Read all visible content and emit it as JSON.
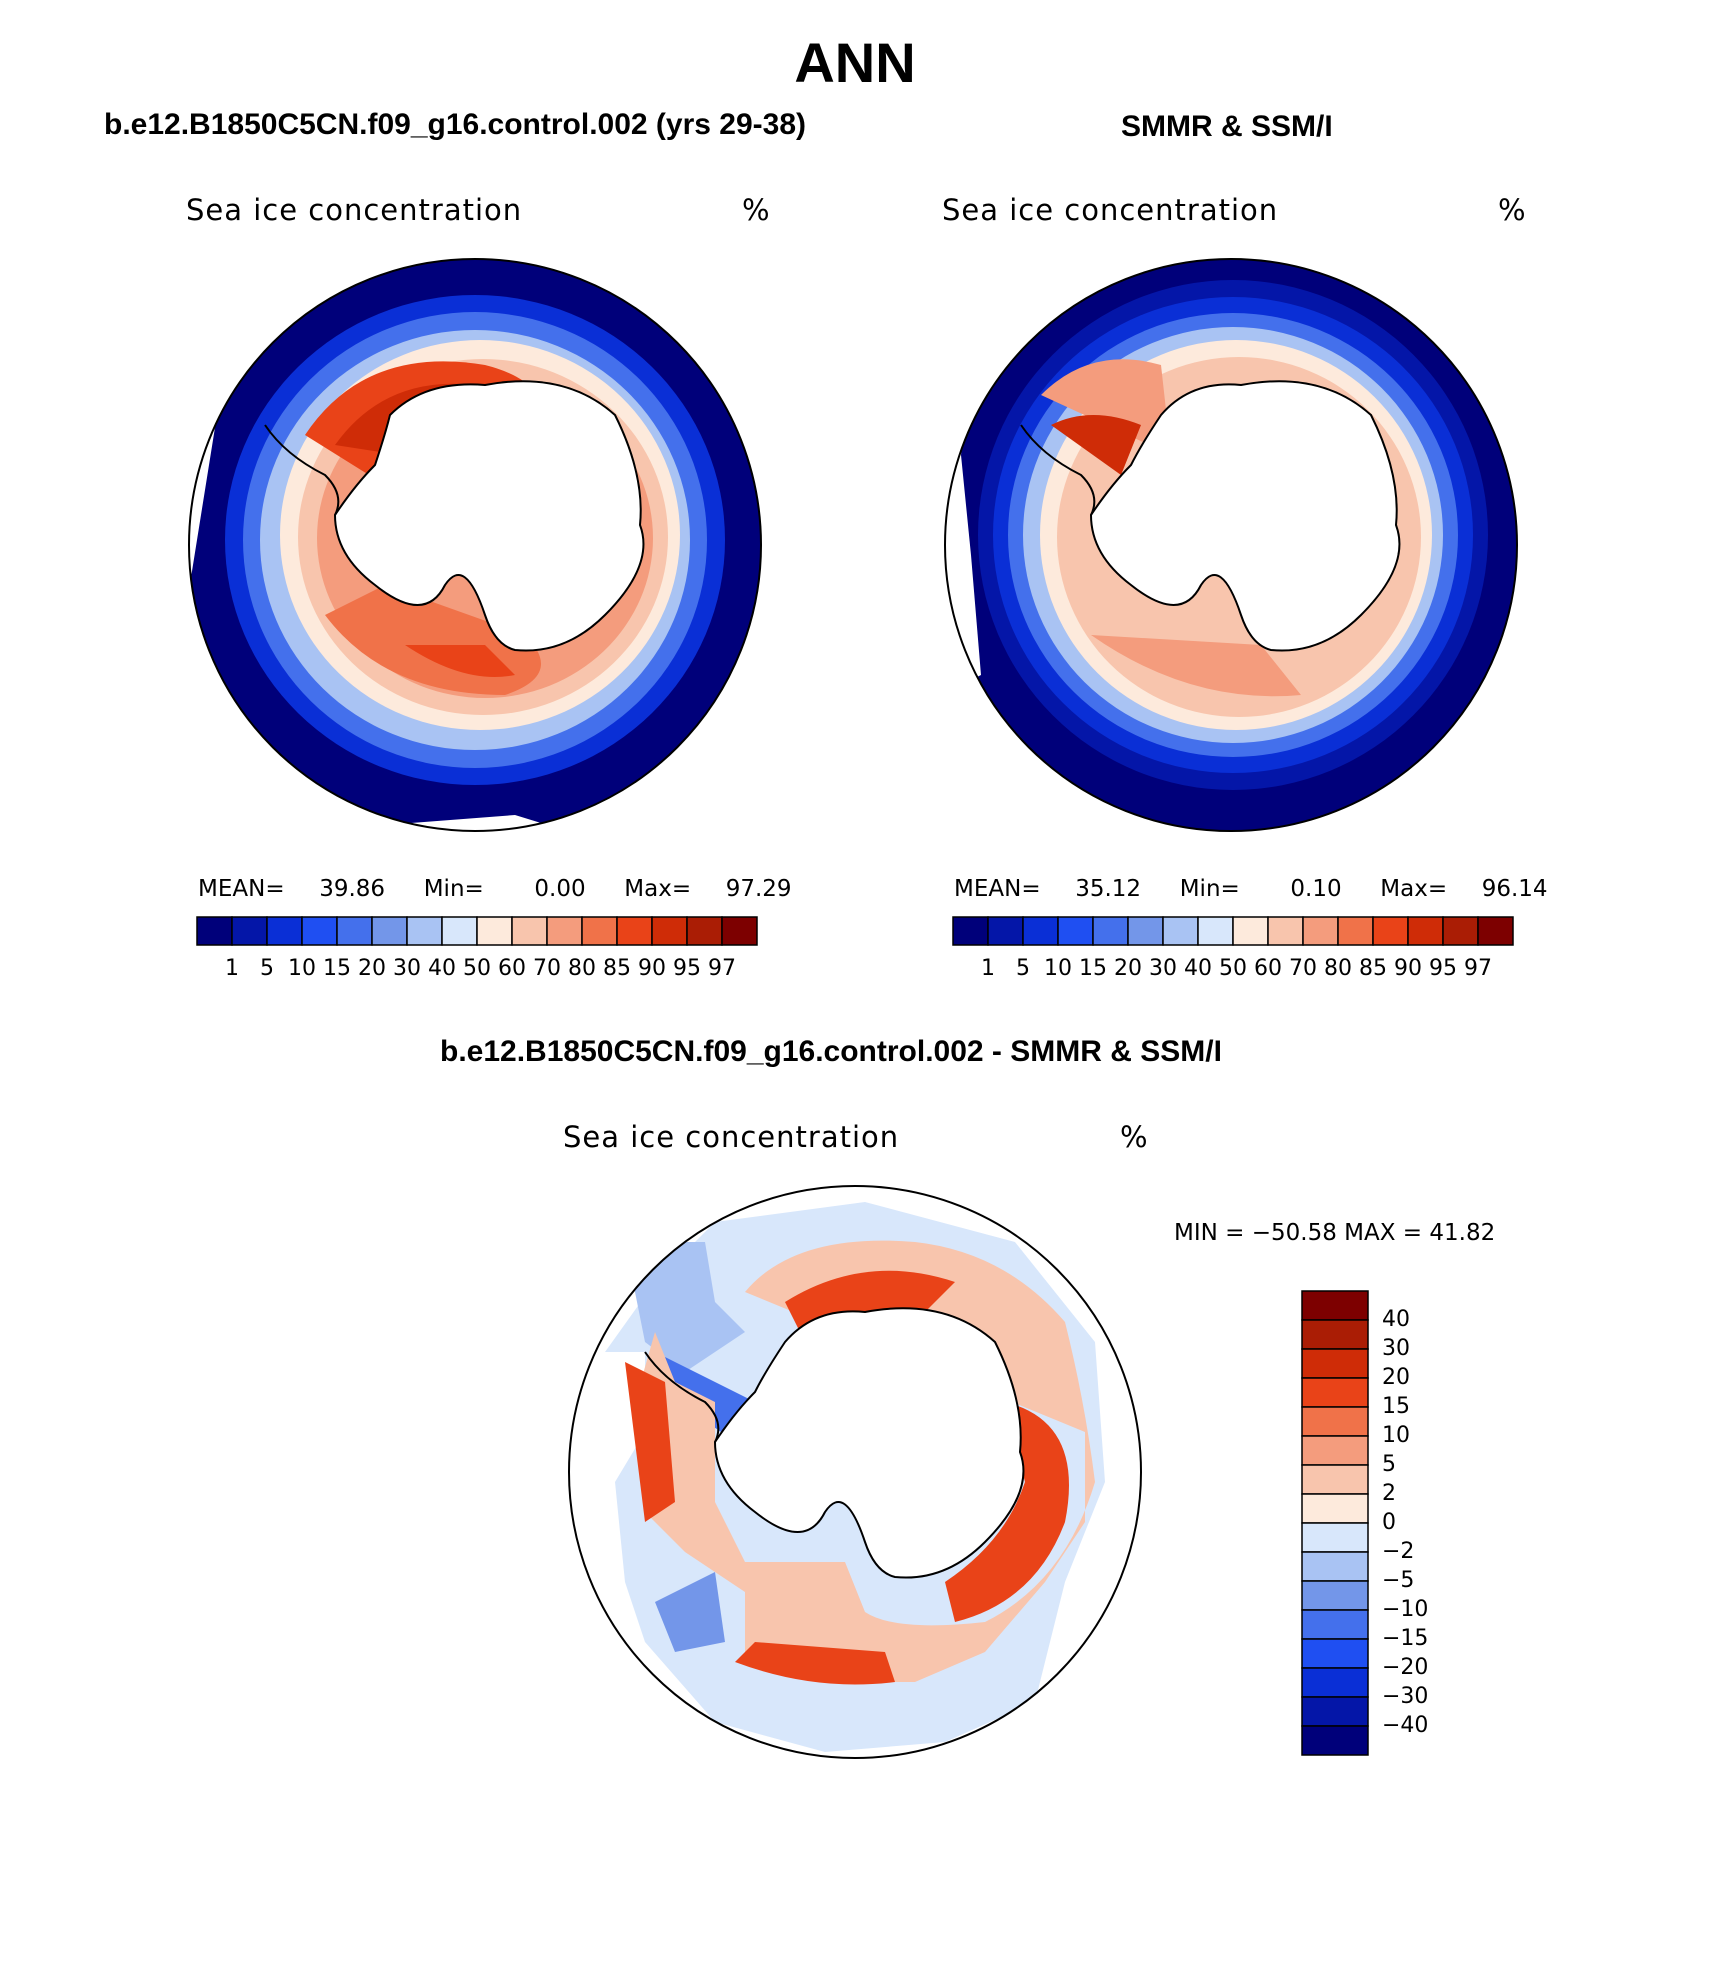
{
  "figure": {
    "title": "ANN"
  },
  "panels": [
    {
      "title": "b.e12.B1850C5CN.f09_g16.control.002 (yrs 29-38)",
      "label": "Sea ice concentration",
      "units": "%",
      "mean_label": "MEAN=",
      "mean": "39.86",
      "min_label": "Min=",
      "min": "0.00",
      "max_label": "Max=",
      "max": "97.29"
    },
    {
      "title": "SMMR & SSM/I",
      "label": "Sea ice concentration",
      "units": "%",
      "mean_label": "MEAN=",
      "mean": "35.12",
      "min_label": "Min=",
      "min": "0.10",
      "max_label": "Max=",
      "max": "96.14"
    }
  ],
  "diff_panel": {
    "title": "b.e12.B1850C5CN.f09_g16.control.002 - SMMR & SSM/I",
    "label": "Sea ice concentration",
    "units": "%",
    "minmax_text": "MIN = −50.58 MAX =   41.82"
  },
  "conc_colorbar": {
    "levels": [
      "1",
      "5",
      "10",
      "15",
      "20",
      "30",
      "40",
      "50",
      "60",
      "70",
      "80",
      "85",
      "90",
      "95",
      "97"
    ],
    "colors": [
      "#00007a",
      "#0416a8",
      "#0a2fd6",
      "#1f4ff2",
      "#4470ec",
      "#7396e9",
      "#a9c3f3",
      "#d8e7fb",
      "#fdeadc",
      "#f8c5ad",
      "#f49c7d",
      "#f07249",
      "#e94318",
      "#cf2c07",
      "#aa1d05",
      "#7d0000"
    ]
  },
  "diff_colorbar": {
    "levels": [
      "40",
      "30",
      "20",
      "15",
      "10",
      "5",
      "2",
      "0",
      "−2",
      "−5",
      "−10",
      "−15",
      "−20",
      "−30",
      "−40"
    ],
    "colors": [
      "#7d0000",
      "#aa1d05",
      "#cf2c07",
      "#e94318",
      "#f07249",
      "#f49c7d",
      "#f8c5ad",
      "#fdeadc",
      "#d8e7fb",
      "#a9c3f3",
      "#7396e9",
      "#4470ec",
      "#1f4ff2",
      "#0a2fd6",
      "#0416a8",
      "#00007a"
    ]
  },
  "chart_data": [
    {
      "type": "heatmap",
      "title": "b.e12.B1850C5CN.f09_g16.control.002 (yrs 29-38)",
      "variable": "Sea ice concentration",
      "units": "%",
      "projection": "south polar stereographic",
      "mean": 39.86,
      "min": 0.0,
      "max": 97.29,
      "contour_levels": [
        1,
        5,
        10,
        15,
        20,
        30,
        40,
        50,
        60,
        70,
        80,
        85,
        90,
        95,
        97
      ]
    },
    {
      "type": "heatmap",
      "title": "SMMR & SSM/I",
      "variable": "Sea ice concentration",
      "units": "%",
      "projection": "south polar stereographic",
      "mean": 35.12,
      "min": 0.1,
      "max": 96.14,
      "contour_levels": [
        1,
        5,
        10,
        15,
        20,
        30,
        40,
        50,
        60,
        70,
        80,
        85,
        90,
        95,
        97
      ]
    },
    {
      "type": "heatmap",
      "title": "b.e12.B1850C5CN.f09_g16.control.002 - SMMR & SSM/I",
      "variable": "Sea ice concentration",
      "units": "%",
      "projection": "south polar stereographic",
      "min": -50.58,
      "max": 41.82,
      "contour_levels": [
        -40,
        -30,
        -20,
        -15,
        -10,
        -5,
        -2,
        0,
        2,
        5,
        10,
        15,
        20,
        30,
        40
      ]
    }
  ]
}
